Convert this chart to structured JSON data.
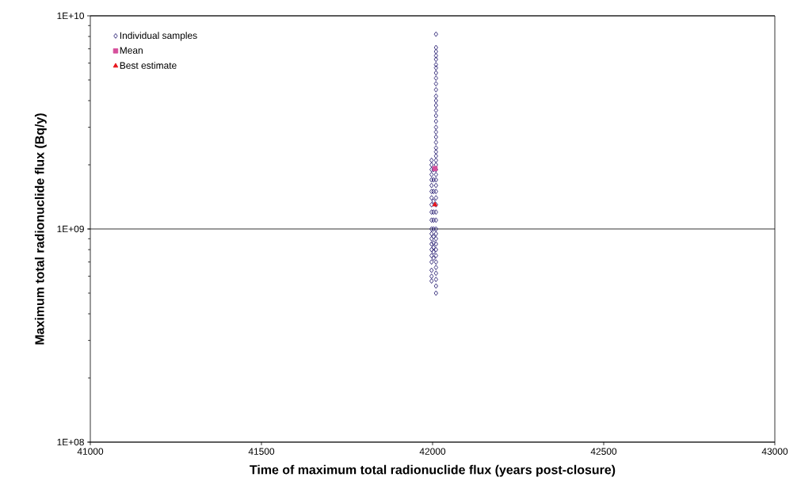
{
  "chart_data": {
    "type": "scatter",
    "xlabel": "Time of maximum total radionuclide flux (years post-closure)",
    "ylabel": "Maximum total radionuclide flux (Bq/y)",
    "xlim": [
      41000,
      43000
    ],
    "xticks": [
      41000,
      41500,
      42000,
      42500,
      43000
    ],
    "ylim": [
      100000000.0,
      10000000000.0
    ],
    "yticks": [
      {
        "value": 100000000.0,
        "label": "1E+08"
      },
      {
        "value": 1000000000.0,
        "label": "1E+09"
      },
      {
        "value": 10000000000.0,
        "label": "1E+10"
      }
    ],
    "log": "y",
    "grid": "y",
    "legend": "top left",
    "series": [
      {
        "name": "Individual samples",
        "color": "#2e2576",
        "marker": "diamond",
        "x": [
          42010,
          42010,
          42010,
          42010,
          42010,
          42010,
          42010,
          42010,
          42010,
          42010,
          42010,
          42010,
          42010,
          42010,
          42010,
          42010,
          42010,
          42010,
          42010,
          42010,
          42010,
          42010,
          42010,
          42010,
          42010,
          42010,
          42010,
          42010,
          42010,
          42010,
          42010,
          42010,
          42010,
          42010,
          42010,
          42010,
          42010,
          42010,
          42010,
          42010,
          42010,
          42010,
          42010,
          42010,
          42010,
          42010,
          42010,
          41997,
          41997,
          41997,
          41997,
          41997,
          41997,
          41997,
          41997,
          41997,
          41997,
          41997,
          41997,
          41997,
          41997,
          41997,
          41997,
          41997,
          41997,
          41997,
          41997,
          41997,
          42003,
          42003,
          42003,
          42003,
          42003,
          42003,
          42003,
          42003,
          42003,
          42003,
          42003,
          42003
        ],
        "values": [
          8200000000.0,
          7100000000.0,
          6800000000.0,
          6500000000.0,
          6250000000.0,
          5900000000.0,
          5700000000.0,
          5400000000.0,
          5100000000.0,
          4800000000.0,
          4500000000.0,
          4200000000.0,
          4000000000.0,
          3800000000.0,
          3600000000.0,
          3400000000.0,
          3200000000.0,
          3000000000.0,
          2850000000.0,
          2700000000.0,
          2550000000.0,
          2400000000.0,
          2300000000.0,
          2200000000.0,
          2100000000.0,
          2000000000.0,
          1900000000.0,
          1800000000.0,
          1700000000.0,
          1600000000.0,
          1500000000.0,
          1400000000.0,
          1300000000.0,
          1200000000.0,
          1100000000.0,
          1000000000.0,
          950000000.0,
          900000000.0,
          850000000.0,
          800000000.0,
          750000000.0,
          700000000.0,
          660000000.0,
          620000000.0,
          580000000.0,
          540000000.0,
          500000000.0,
          2100000000.0,
          2000000000.0,
          1900000000.0,
          1800000000.0,
          1700000000.0,
          1600000000.0,
          1500000000.0,
          1400000000.0,
          1300000000.0,
          1200000000.0,
          1100000000.0,
          1000000000.0,
          950000000.0,
          900000000.0,
          850000000.0,
          800000000.0,
          750000000.0,
          700000000.0,
          640000000.0,
          600000000.0,
          570000000.0,
          1900000000.0,
          1700000000.0,
          1500000000.0,
          1350000000.0,
          1200000000.0,
          1100000000.0,
          1000000000.0,
          920000000.0,
          860000000.0,
          820000000.0,
          780000000.0,
          730000000.0
        ]
      },
      {
        "name": "Mean",
        "color": "#d64f9b",
        "marker": "square",
        "x": [
          42007
        ],
        "values": [
          1920000000.0
        ]
      },
      {
        "name": "Best estimate",
        "color": "#e8141b",
        "marker": "triangle",
        "x": [
          42007
        ],
        "values": [
          1300000000.0
        ]
      }
    ]
  }
}
